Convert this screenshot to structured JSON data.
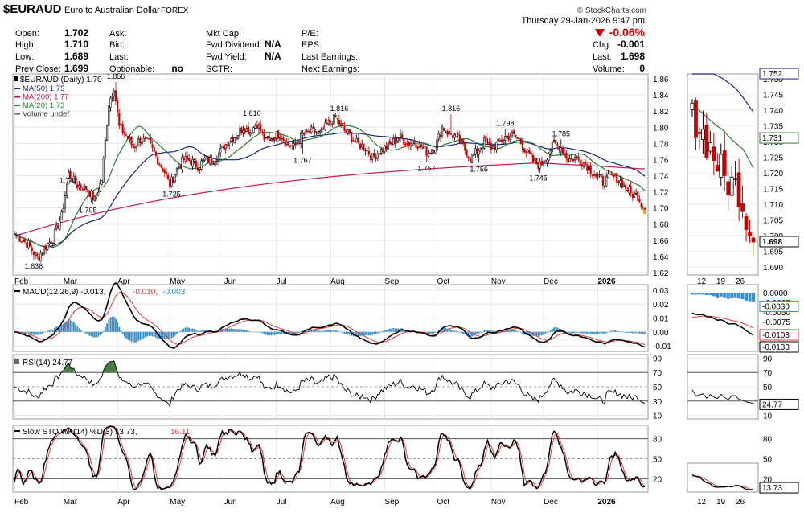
{
  "header": {
    "symbol": "$EURAUD",
    "name": "Euro to Australian Dollar",
    "exchange": "FOREX",
    "copyright": "© StockCharts.com",
    "datetime": "Thursday   29-Jan-2026   9:47 pm",
    "change_pct": "-0.06%",
    "quote": [
      {
        "label": "Open:",
        "value": "1.702"
      },
      {
        "label": "High:",
        "value": "1.710"
      },
      {
        "label": "Low:",
        "value": "1.689"
      },
      {
        "label": "Prev Close:",
        "value": "1.699"
      }
    ],
    "quote2": [
      {
        "label": "Ask:",
        "value": ""
      },
      {
        "label": "Bid:",
        "value": ""
      },
      {
        "label": "Last:",
        "value": ""
      },
      {
        "label": "Optionable:",
        "value": "no"
      }
    ],
    "fund": [
      {
        "label": "Mkt Cap:",
        "value": ""
      },
      {
        "label": "Fwd Dividend:",
        "value": "N/A"
      },
      {
        "label": "Fwd Yield:",
        "value": "N/A"
      },
      {
        "label": "SCTR:",
        "value": ""
      }
    ],
    "earn": [
      "P/E:",
      "EPS:",
      "Last Earnings:",
      "Next Earnings:"
    ],
    "right": [
      {
        "label": "Chg:",
        "value": "-0.001"
      },
      {
        "label": "Last:",
        "value": "1.698"
      },
      {
        "label": "Volume:",
        "value": "0"
      }
    ]
  },
  "colors": {
    "up": "#000000",
    "down": "#cc0000",
    "ma50": "#1a237e",
    "ma200": "#c2185b",
    "ma20": "#2e7d32",
    "macd": "#000000",
    "signal": "#e53935",
    "hist": "#3d8fc6",
    "rsi_fill": "#4a7c4a"
  },
  "chart_data": [
    {
      "type": "line",
      "panel": "price",
      "title": "$EURAUD (Daily) 1.70",
      "legend": [
        "MA(50) 1.75",
        "MA(200) 1.77",
        "MA(20) 1.73",
        "Volume undef"
      ],
      "x_labels": [
        "Feb",
        "Mar",
        "Apr",
        "May",
        "Jun",
        "Jul",
        "Aug",
        "Sep",
        "Oct",
        "Nov",
        "Dec",
        "2026"
      ],
      "x_label_index": [
        0,
        28,
        59,
        89,
        120,
        150,
        181,
        212,
        242,
        273,
        303,
        334
      ],
      "n": 362,
      "ylim": [
        1.617,
        1.866
      ],
      "y_ticks": [
        "1.62",
        "1.64",
        "1.66",
        "1.68",
        "1.70",
        "1.72",
        "1.74",
        "1.76",
        "1.78",
        "1.80",
        "1.82",
        "1.84",
        "1.86"
      ],
      "close_anchors": [
        [
          0,
          1.668
        ],
        [
          8,
          1.655
        ],
        [
          13,
          1.638
        ],
        [
          17,
          1.65
        ],
        [
          22,
          1.662
        ],
        [
          27,
          1.69
        ],
        [
          31,
          1.742
        ],
        [
          36,
          1.728
        ],
        [
          41,
          1.725
        ],
        [
          46,
          1.71
        ],
        [
          50,
          1.735
        ],
        [
          54,
          1.83
        ],
        [
          57,
          1.85
        ],
        [
          60,
          1.8
        ],
        [
          64,
          1.79
        ],
        [
          68,
          1.775
        ],
        [
          72,
          1.785
        ],
        [
          77,
          1.78
        ],
        [
          82,
          1.76
        ],
        [
          86,
          1.745
        ],
        [
          89,
          1.728
        ],
        [
          93,
          1.748
        ],
        [
          97,
          1.76
        ],
        [
          101,
          1.758
        ],
        [
          105,
          1.752
        ],
        [
          109,
          1.76
        ],
        [
          113,
          1.758
        ],
        [
          118,
          1.77
        ],
        [
          123,
          1.785
        ],
        [
          127,
          1.79
        ],
        [
          131,
          1.8
        ],
        [
          135,
          1.795
        ],
        [
          139,
          1.805
        ],
        [
          144,
          1.782
        ],
        [
          148,
          1.788
        ],
        [
          152,
          1.792
        ],
        [
          156,
          1.78
        ],
        [
          160,
          1.775
        ],
        [
          165,
          1.79
        ],
        [
          170,
          1.795
        ],
        [
          175,
          1.792
        ],
        [
          180,
          1.805
        ],
        [
          184,
          1.812
        ],
        [
          188,
          1.798
        ],
        [
          192,
          1.79
        ],
        [
          196,
          1.78
        ],
        [
          201,
          1.775
        ],
        [
          205,
          1.762
        ],
        [
          209,
          1.77
        ],
        [
          213,
          1.775
        ],
        [
          217,
          1.782
        ],
        [
          221,
          1.788
        ],
        [
          225,
          1.78
        ],
        [
          229,
          1.782
        ],
        [
          233,
          1.776
        ],
        [
          237,
          1.768
        ],
        [
          241,
          1.776
        ],
        [
          245,
          1.8
        ],
        [
          249,
          1.792
        ],
        [
          253,
          1.788
        ],
        [
          257,
          1.776
        ],
        [
          261,
          1.762
        ],
        [
          265,
          1.77
        ],
        [
          269,
          1.782
        ],
        [
          273,
          1.775
        ],
        [
          277,
          1.78
        ],
        [
          281,
          1.788
        ],
        [
          285,
          1.79
        ],
        [
          289,
          1.785
        ],
        [
          293,
          1.77
        ],
        [
          297,
          1.758
        ],
        [
          301,
          1.752
        ],
        [
          305,
          1.765
        ],
        [
          309,
          1.78
        ],
        [
          313,
          1.775
        ],
        [
          317,
          1.76
        ],
        [
          321,
          1.762
        ],
        [
          325,
          1.758
        ],
        [
          329,
          1.75
        ],
        [
          333,
          1.74
        ],
        [
          337,
          1.732
        ],
        [
          341,
          1.738
        ],
        [
          345,
          1.737
        ],
        [
          349,
          1.728
        ],
        [
          353,
          1.718
        ],
        [
          357,
          1.715
        ],
        [
          361,
          1.698
        ]
      ],
      "annotations": [
        {
          "index": 11,
          "value": 1.636,
          "text": "1.636"
        },
        {
          "index": 31,
          "value": 1.742,
          "text": "1.742"
        },
        {
          "index": 42,
          "value": 1.705,
          "text": "1.705"
        },
        {
          "index": 58,
          "value": 1.856,
          "text": "1.856"
        },
        {
          "index": 90,
          "value": 1.725,
          "text": "1.725"
        },
        {
          "index": 136,
          "value": 1.81,
          "text": "1.810"
        },
        {
          "index": 165,
          "value": 1.767,
          "text": "1.767"
        },
        {
          "index": 186,
          "value": 1.816,
          "text": "1.816"
        },
        {
          "index": 236,
          "value": 1.757,
          "text": "1.757"
        },
        {
          "index": 250,
          "value": 1.816,
          "text": "1.816"
        },
        {
          "index": 266,
          "value": 1.756,
          "text": "1.756"
        },
        {
          "index": 281,
          "value": 1.798,
          "text": "1.798"
        },
        {
          "index": 300,
          "value": 1.745,
          "text": "1.745"
        },
        {
          "index": 313,
          "value": 1.785,
          "text": "1.785"
        }
      ]
    },
    {
      "type": "line",
      "panel": "macd",
      "title": "MACD(12,26,9)",
      "values": {
        "macd": "-0.013",
        "signal": "-0.010",
        "hist": "-0.003"
      },
      "ylim": [
        -0.014,
        0.034
      ],
      "y_ticks": [
        "0.03",
        "0.02",
        "0.01",
        "0.00",
        "-0.01"
      ]
    },
    {
      "type": "line",
      "panel": "rsi",
      "title": "RSI(14) 24.77",
      "ylim": [
        5,
        95
      ],
      "y_ticks": [
        "90",
        "70",
        "50",
        "30",
        "10"
      ]
    },
    {
      "type": "line",
      "panel": "sto",
      "title": "Slow STO %K(14) %D(3)",
      "values": {
        "k": "13.73",
        "d": "16.11"
      },
      "ylim": [
        0,
        100
      ],
      "y_ticks": [
        "80",
        "50",
        "20"
      ]
    },
    {
      "type": "line",
      "panel": "zoom",
      "x_labels": [
        "12",
        "19",
        "26"
      ],
      "price_ticks": [
        "1.750",
        "1.745",
        "1.740",
        "1.735",
        "1.730",
        "1.725",
        "1.720",
        "1.715",
        "1.710",
        "1.705",
        "1.700",
        "1.695",
        "1.690"
      ],
      "price_ylim": [
        1.6875,
        1.7515
      ],
      "price_labels": {
        "ma50": "1.752",
        "ma20": "1.731",
        "last": "1.698"
      },
      "macd_ticks": [
        "0.0000",
        "-0.0025",
        "-0.0050",
        "-0.0075"
      ],
      "macd_labels": {
        "hist": "-0.0030",
        "signal": "-0.0103",
        "macd": "-0.0133"
      },
      "rsi_ticks": [
        "90",
        "70",
        "50",
        "30",
        "10"
      ],
      "rsi_label": "24.77",
      "sto_ticks": [
        "80",
        "50",
        "20"
      ],
      "sto_label": "13.73"
    }
  ]
}
